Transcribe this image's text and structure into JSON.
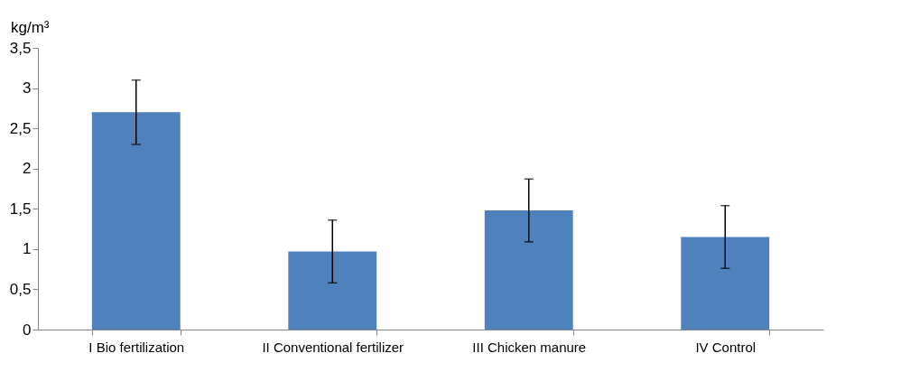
{
  "chart_data": {
    "type": "bar",
    "ylabel": "kg/m³",
    "categories": [
      "I Bio fertilization",
      "II Conventional fertilizer",
      "III Chicken manure",
      "IV Control"
    ],
    "values": [
      2.7,
      0.97,
      1.48,
      1.15
    ],
    "errors": [
      0.4,
      0.39,
      0.39,
      0.39
    ],
    "color": "#4f81bd",
    "ylim": [
      0,
      3.5
    ],
    "yticks": [
      0,
      {
        "value": 0.5,
        "label": "0,5"
      },
      1,
      {
        "value": 1.5,
        "label": "1,5"
      },
      2,
      {
        "value": 2.5,
        "label": "2,5"
      },
      3,
      {
        "value": 3.5,
        "label": "3,5"
      }
    ],
    "grid": false
  }
}
